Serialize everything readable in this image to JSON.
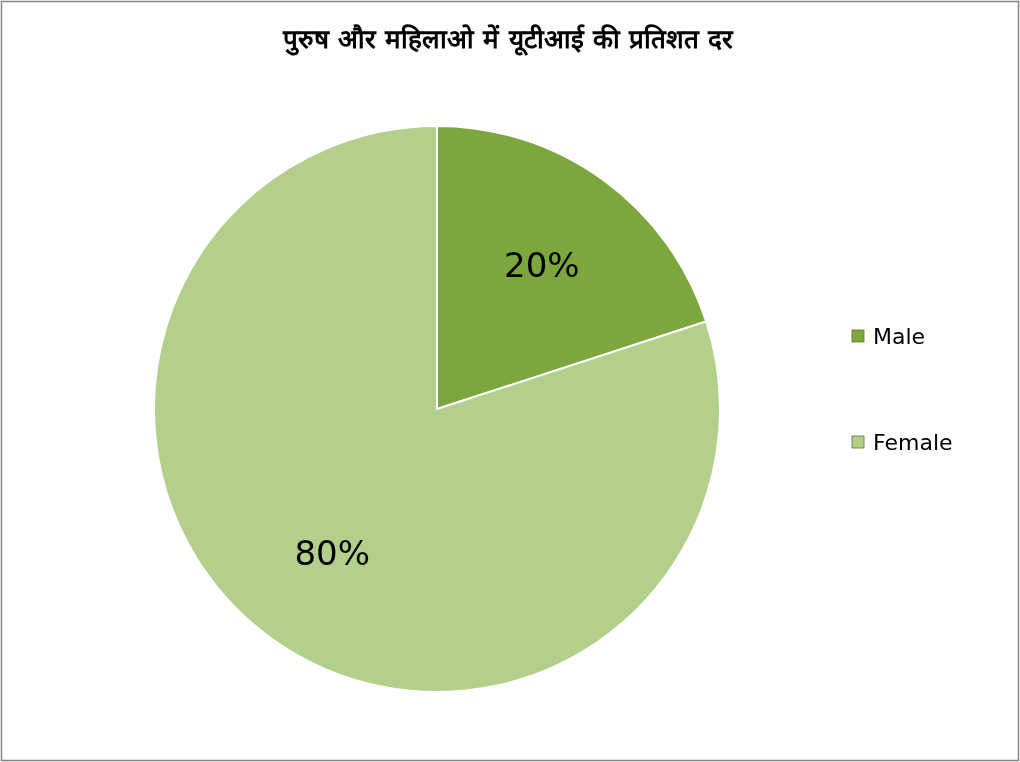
{
  "chart_data": {
    "type": "pie",
    "title": "पुरुष और महिलाओ में यूटीआई की प्रतिशत दर",
    "categories": [
      "Male",
      "Female"
    ],
    "values": [
      20,
      80
    ],
    "colors": [
      "#7ea63e",
      "#b3cf8c"
    ],
    "value_labels": [
      "20%",
      "80%"
    ],
    "legend": "right"
  }
}
